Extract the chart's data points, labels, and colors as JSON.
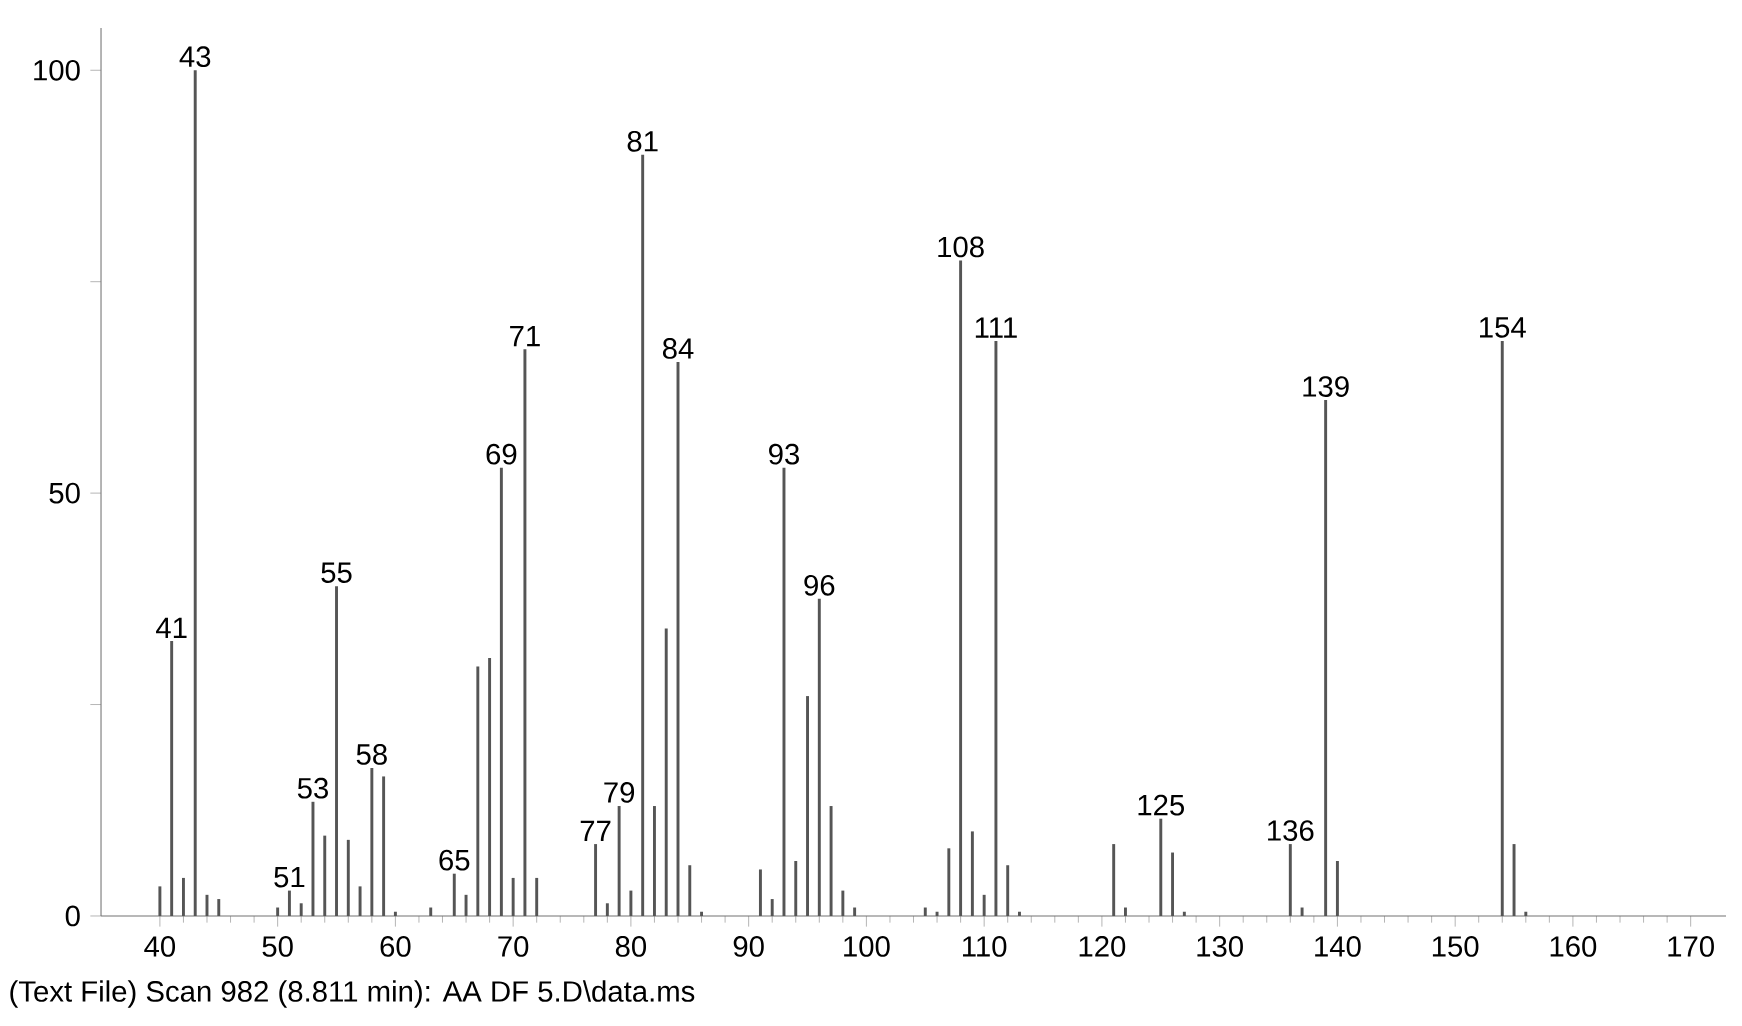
{
  "chart_data": {
    "type": "bar",
    "x": [
      40,
      41,
      42,
      43,
      44,
      45,
      50,
      51,
      52,
      53,
      54,
      55,
      56,
      57,
      58,
      59,
      60,
      63,
      65,
      66,
      67,
      68,
      69,
      70,
      71,
      72,
      77,
      78,
      79,
      80,
      81,
      82,
      83,
      84,
      85,
      86,
      91,
      92,
      93,
      94,
      95,
      96,
      97,
      98,
      99,
      105,
      106,
      107,
      108,
      109,
      110,
      111,
      112,
      113,
      121,
      122,
      125,
      126,
      127,
      136,
      137,
      139,
      140,
      154,
      155,
      156
    ],
    "values": [
      3.5,
      32.5,
      4.5,
      100,
      2.5,
      2,
      1,
      3,
      1.5,
      13.5,
      9.5,
      39,
      9,
      3.5,
      17.5,
      16.5,
      0.5,
      1,
      5,
      2.5,
      29.5,
      30.5,
      53,
      4.5,
      67,
      4.5,
      8.5,
      1.5,
      13,
      3,
      90,
      13,
      34,
      65.5,
      6,
      0.5,
      5.5,
      2,
      53,
      6.5,
      26,
      37.5,
      13,
      3,
      1,
      1,
      0.5,
      8,
      77.5,
      10,
      2.5,
      68,
      6,
      0.5,
      8.5,
      1,
      11.5,
      7.5,
      0.5,
      8.5,
      1,
      61,
      6.5,
      68,
      8.5,
      0.5
    ],
    "color": "#555555",
    "xlim": [
      35,
      173
    ],
    "ylim": [
      0,
      105
    ],
    "xticks": [
      40,
      50,
      60,
      70,
      80,
      90,
      100,
      110,
      120,
      130,
      140,
      150,
      160,
      170
    ],
    "yticks": [
      0,
      {
        "value": 25,
        "label": null
      },
      50,
      {
        "value": 75,
        "label": null
      },
      100
    ],
    "annotations": [
      {
        "text": "41",
        "x": 41,
        "y": 32.5
      },
      {
        "text": "43",
        "x": 43,
        "y": 100
      },
      {
        "text": "51",
        "x": 51,
        "y": 3
      },
      {
        "text": "53",
        "x": 53,
        "y": 13.5
      },
      {
        "text": "55",
        "x": 55,
        "y": 39
      },
      {
        "text": "58",
        "x": 58,
        "y": 17.5
      },
      {
        "text": "65",
        "x": 65,
        "y": 5
      },
      {
        "text": "69",
        "x": 69,
        "y": 53
      },
      {
        "text": "71",
        "x": 71,
        "y": 67
      },
      {
        "text": "77",
        "x": 77,
        "y": 8.5
      },
      {
        "text": "79",
        "x": 79,
        "y": 13
      },
      {
        "text": "81",
        "x": 81,
        "y": 90
      },
      {
        "text": "84",
        "x": 84,
        "y": 65.5
      },
      {
        "text": "93",
        "x": 93,
        "y": 53
      },
      {
        "text": "96",
        "x": 96,
        "y": 37.5
      },
      {
        "text": "108",
        "x": 108,
        "y": 77.5
      },
      {
        "text": "111",
        "x": 111,
        "y": 68
      },
      {
        "text": "125",
        "x": 125,
        "y": 11.5
      },
      {
        "text": "136",
        "x": 136,
        "y": 8.5
      },
      {
        "text": "139",
        "x": 139,
        "y": 61
      },
      {
        "text": "154",
        "x": 154,
        "y": 68
      },
      "(Text File) Scan 982 (8.811 min): AA DF 5.D\\data.ms"
    ]
  }
}
